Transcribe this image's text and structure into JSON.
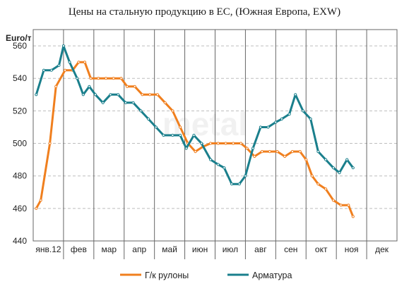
{
  "chart_data": {
    "type": "line",
    "title": "Цены на стальную продукцию в ЕС, (Южная Европа,  EXW)",
    "ylabel": "Euro/т",
    "ylim": [
      440,
      570
    ],
    "yticks": [
      440,
      460,
      480,
      500,
      520,
      540,
      560
    ],
    "xlim": [
      0,
      12
    ],
    "categories": [
      "янв.12",
      "фев",
      "мар",
      "апр",
      "май",
      "июн",
      "июл",
      "авг",
      "сен",
      "окт",
      "ноя",
      "дек"
    ],
    "grid": true,
    "legend_position": "bottom",
    "series": [
      {
        "name": "Г/к рулоны",
        "color": "#f07f1e",
        "x": [
          0.1,
          0.25,
          0.55,
          0.75,
          1.05,
          1.3,
          1.5,
          1.7,
          1.9,
          2.15,
          2.4,
          2.65,
          2.9,
          3.1,
          3.35,
          3.6,
          3.85,
          4.1,
          4.35,
          4.6,
          4.85,
          5.1,
          5.35,
          5.6,
          5.85,
          6.1,
          6.35,
          6.6,
          6.85,
          7.05,
          7.3,
          7.55,
          7.8,
          8.05,
          8.3,
          8.55,
          8.8,
          9.0,
          9.2,
          9.4,
          9.65,
          9.9,
          10.15,
          10.4
        ],
        "values": [
          460,
          465,
          500,
          535,
          545,
          545,
          550,
          550,
          540,
          540,
          540,
          540,
          540,
          535,
          535,
          530,
          530,
          530,
          525,
          520,
          510,
          500,
          495,
          498,
          500,
          500,
          500,
          500,
          500,
          497,
          492,
          495,
          495,
          495,
          492,
          495,
          495,
          490,
          480,
          475,
          472,
          465,
          462,
          462
        ]
      },
      {
        "name": "Арматура",
        "color": "#1a7f8c",
        "x": [
          0.1,
          0.35,
          0.6,
          0.85,
          1.0,
          1.2,
          1.45,
          1.65,
          1.85,
          2.05,
          2.3,
          2.55,
          2.8,
          3.05,
          3.3,
          3.55,
          3.8,
          4.05,
          4.3,
          4.6,
          4.85,
          5.05,
          5.3,
          5.55,
          5.85,
          6.1,
          6.3,
          6.55,
          6.8,
          7.0,
          7.25,
          7.5,
          7.75,
          8.0,
          8.2,
          8.45,
          8.65,
          8.9,
          9.15,
          9.4,
          9.65,
          9.9,
          10.1,
          10.35,
          10.55
        ],
        "values": [
          530,
          545,
          545,
          548,
          560,
          550,
          540,
          530,
          535,
          530,
          525,
          530,
          530,
          525,
          525,
          520,
          515,
          510,
          505,
          505,
          505,
          497,
          505,
          500,
          490,
          487,
          485,
          475,
          475,
          480,
          497,
          510,
          510,
          513,
          515,
          518,
          530,
          520,
          515,
          495,
          490,
          485,
          482,
          490,
          485
        ]
      }
    ],
    "end_point": {
      "Г/к рулоны": [
        10.55,
        455
      ]
    }
  },
  "watermark": "metal"
}
